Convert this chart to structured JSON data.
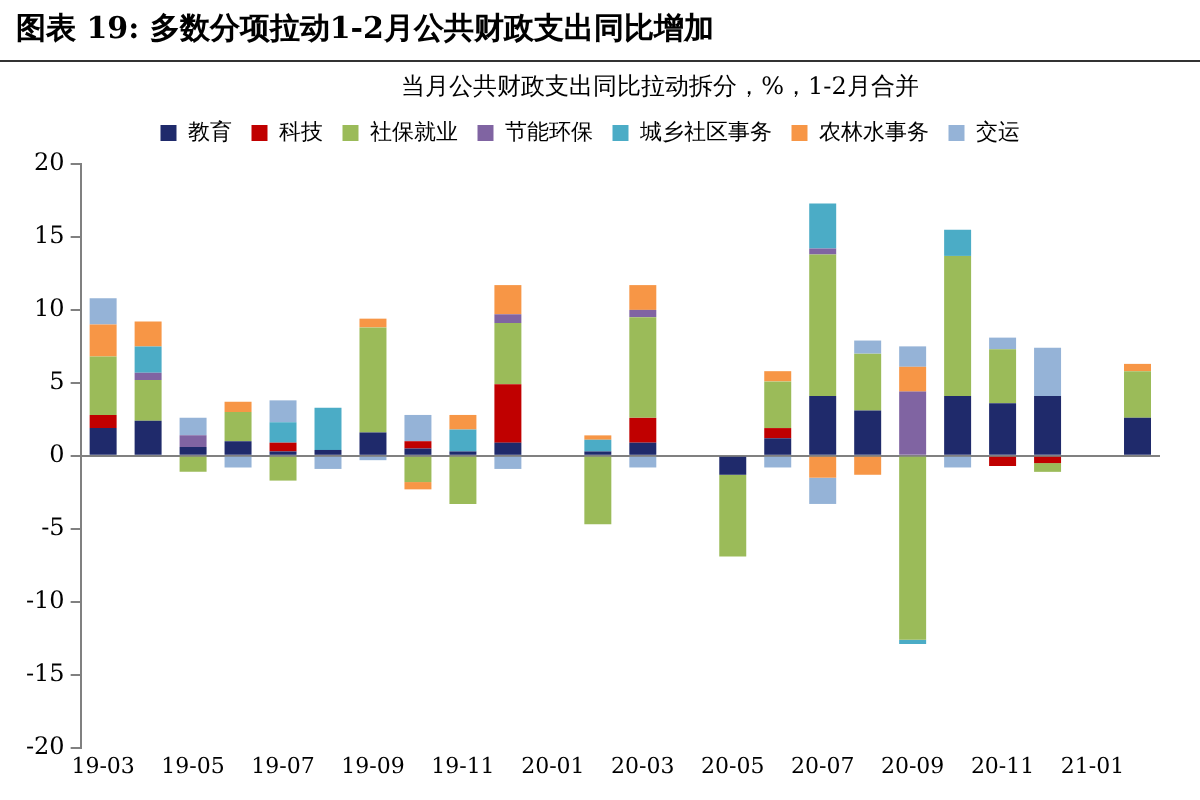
{
  "chart_data": {
    "type": "bar",
    "stacked": true,
    "title": "图表 19: 多数分项拉动1-2月公共财政支出同比增加",
    "subtitle": "当月公共财政支出同比拉动拆分，%，1-2月合并",
    "categories": [
      "19-03",
      null,
      "19-05",
      null,
      "19-07",
      null,
      "19-09",
      null,
      "19-11",
      null,
      "20-01",
      null,
      "20-03",
      null,
      "20-05",
      null,
      "20-07",
      null,
      "20-09",
      null,
      "20-11",
      null,
      "21-01",
      null
    ],
    "series": [
      {
        "name": "教育",
        "color": "#1f2a6b",
        "values": [
          1.9,
          2.4,
          0.6,
          1.0,
          0.3,
          0.4,
          1.6,
          0.5,
          0.3,
          0.9,
          null,
          0.3,
          0.9,
          null,
          -1.3,
          1.2,
          4.1,
          3.1,
          null,
          4.1,
          3.6,
          4.1,
          null,
          2.6
        ]
      },
      {
        "name": "科技",
        "color": "#c00000",
        "values": [
          0.9,
          null,
          null,
          null,
          0.6,
          null,
          null,
          0.5,
          null,
          4.0,
          null,
          null,
          1.7,
          null,
          null,
          0.7,
          null,
          null,
          null,
          null,
          -0.7,
          -0.5,
          null,
          null
        ]
      },
      {
        "name": "社保就业",
        "color": "#9bbb59",
        "values": [
          4.0,
          2.8,
          -1.1,
          2.0,
          -1.7,
          null,
          7.2,
          -1.8,
          -3.3,
          4.2,
          null,
          -4.7,
          6.9,
          null,
          -5.6,
          3.2,
          9.7,
          3.9,
          -12.6,
          9.6,
          3.7,
          -0.6,
          null,
          3.2
        ]
      },
      {
        "name": "节能环保",
        "color": "#8064a2",
        "values": [
          null,
          0.5,
          0.8,
          null,
          null,
          null,
          null,
          null,
          null,
          0.6,
          null,
          null,
          0.5,
          null,
          null,
          null,
          0.4,
          null,
          4.4,
          null,
          null,
          null,
          null,
          null
        ]
      },
      {
        "name": "城乡社区事务",
        "color": "#4bacc6",
        "values": [
          null,
          1.8,
          null,
          null,
          1.4,
          2.9,
          null,
          null,
          1.5,
          null,
          null,
          0.8,
          null,
          null,
          null,
          null,
          3.1,
          null,
          -0.3,
          1.8,
          null,
          null,
          null,
          null
        ]
      },
      {
        "name": "农林水事务",
        "color": "#f79646",
        "values": [
          2.2,
          1.7,
          null,
          0.7,
          null,
          null,
          0.6,
          -0.5,
          1.0,
          2.0,
          null,
          0.3,
          1.7,
          null,
          null,
          0.7,
          -1.5,
          -1.3,
          1.7,
          null,
          null,
          null,
          null,
          0.5
        ]
      },
      {
        "name": "交运",
        "color": "#95b3d7",
        "values": [
          1.8,
          null,
          1.2,
          -0.8,
          1.5,
          -0.9,
          -0.3,
          1.8,
          null,
          -0.9,
          null,
          null,
          -0.8,
          null,
          null,
          -0.8,
          -1.8,
          0.9,
          1.4,
          -0.8,
          0.8,
          3.3,
          null,
          null
        ]
      }
    ],
    "ylim": [
      -20,
      20
    ],
    "yticks": [
      -20,
      -15,
      -10,
      -5,
      0,
      5,
      10,
      15,
      20
    ],
    "legend": "top"
  }
}
